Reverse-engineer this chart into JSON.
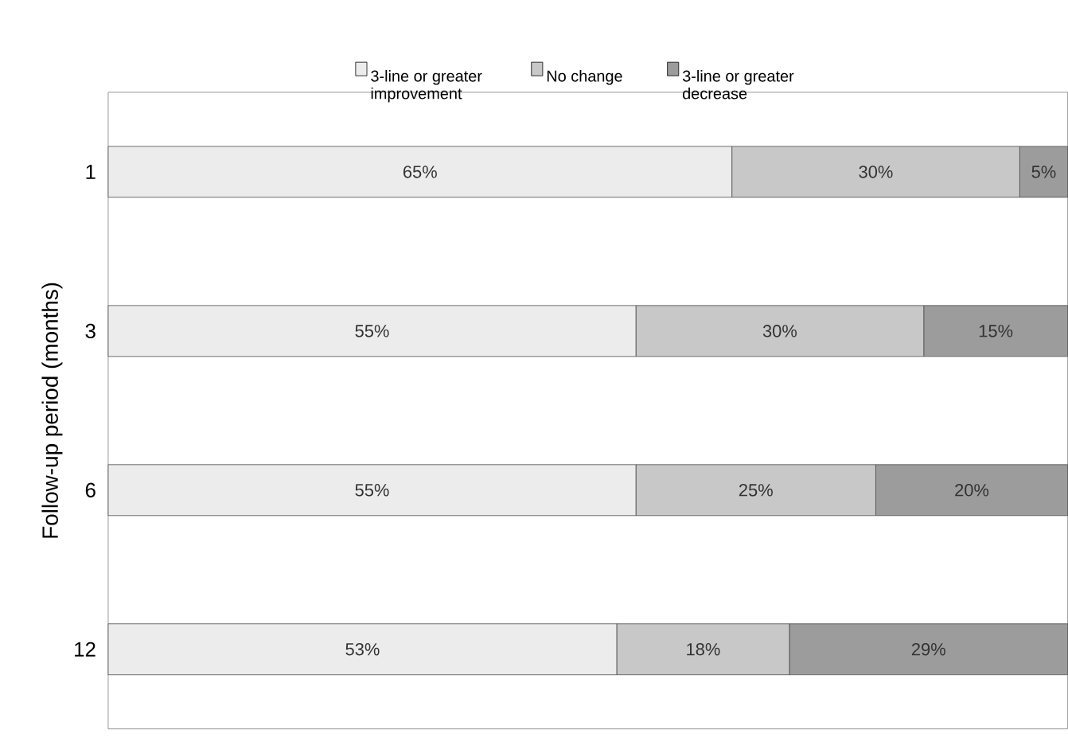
{
  "chart_data": {
    "type": "bar",
    "orientation": "horizontal",
    "stacked": true,
    "ylabel": "Follow-up period (months)",
    "categories": [
      "1",
      "3",
      "6",
      "12"
    ],
    "legend": "top",
    "tick_labels": "y",
    "series": [
      {
        "name": "3-line or greater improvement",
        "color": "#ececec",
        "values": [
          65,
          55,
          55,
          53
        ],
        "value_labels": [
          "65%",
          "55%",
          "55%",
          "53%"
        ]
      },
      {
        "name": "No change",
        "color": "#c8c8c8",
        "values": [
          30,
          30,
          25,
          18
        ],
        "value_labels": [
          "30%",
          "30%",
          "25%",
          "18%"
        ]
      },
      {
        "name": "3-line or greater decrease",
        "color": "#9c9c9c",
        "values": [
          5,
          15,
          20,
          29
        ],
        "value_labels": [
          "5%",
          "15%",
          "20%",
          "29%"
        ]
      }
    ]
  }
}
